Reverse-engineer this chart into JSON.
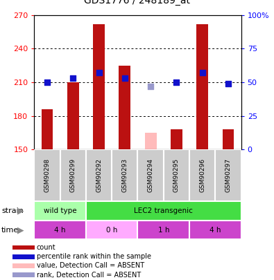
{
  "title": "GDS1776 / 248189_at",
  "samples": [
    "GSM90298",
    "GSM90299",
    "GSM90292",
    "GSM90293",
    "GSM90294",
    "GSM90295",
    "GSM90296",
    "GSM90297"
  ],
  "counts": [
    186,
    210,
    262,
    225,
    165,
    168,
    262,
    168
  ],
  "count_absent": [
    false,
    false,
    false,
    false,
    true,
    false,
    false,
    false
  ],
  "percentile_ranks_pct": [
    50,
    53,
    57,
    53,
    47,
    50,
    57,
    49
  ],
  "rank_absent": [
    false,
    false,
    false,
    false,
    true,
    false,
    false,
    false
  ],
  "ylim_left": [
    150,
    270
  ],
  "ylim_right": [
    0,
    100
  ],
  "yticks_left": [
    150,
    180,
    210,
    240,
    270
  ],
  "yticks_right": [
    0,
    25,
    50,
    75,
    100
  ],
  "ytick_labels_right": [
    "0",
    "25",
    "50",
    "75",
    "100%"
  ],
  "bar_color_present": "#bb1111",
  "bar_color_absent": "#ffbbbb",
  "dot_color_present": "#1111cc",
  "dot_color_absent": "#9999cc",
  "strain_groups": [
    {
      "label": "wild type",
      "start": 0,
      "end": 2,
      "color": "#aaffaa"
    },
    {
      "label": "LEC2 transgenic",
      "start": 2,
      "end": 8,
      "color": "#44dd44"
    }
  ],
  "time_groups": [
    {
      "label": "4 h",
      "start": 0,
      "end": 2,
      "color": "#cc44cc"
    },
    {
      "label": "0 h",
      "start": 2,
      "end": 4,
      "color": "#ffaaff"
    },
    {
      "label": "1 h",
      "start": 4,
      "end": 6,
      "color": "#cc44cc"
    },
    {
      "label": "4 h",
      "start": 6,
      "end": 8,
      "color": "#cc44cc"
    }
  ],
  "legend_items": [
    {
      "label": "count",
      "color": "#bb1111"
    },
    {
      "label": "percentile rank within the sample",
      "color": "#1111cc"
    },
    {
      "label": "value, Detection Call = ABSENT",
      "color": "#ffbbbb"
    },
    {
      "label": "rank, Detection Call = ABSENT",
      "color": "#9999cc"
    }
  ],
  "bar_width": 0.45,
  "dot_size": 40,
  "sample_bg_color": "#cccccc"
}
